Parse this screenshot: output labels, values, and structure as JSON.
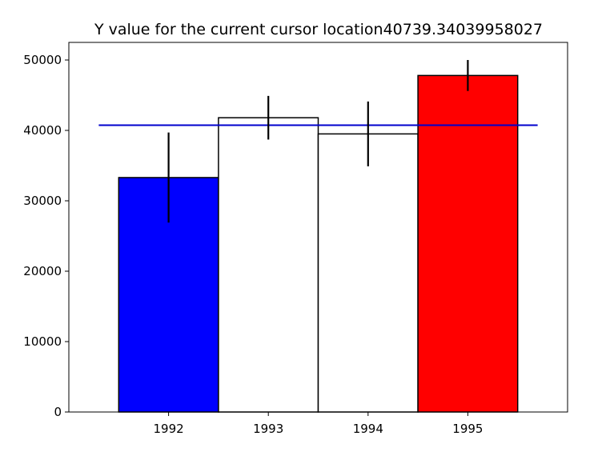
{
  "chart_data": {
    "type": "bar",
    "title": "Y value for the current cursor location40739.34039958027",
    "categories": [
      "1992",
      "1993",
      "1994",
      "1995"
    ],
    "values": [
      33300,
      41800,
      39500,
      47800
    ],
    "error": [
      6400,
      3100,
      4600,
      2200
    ],
    "bar_colors": [
      "#0000ff",
      "#ffffff",
      "#ffffff",
      "#ff0000"
    ],
    "edge_color": "#000000",
    "error_color": "#000000",
    "hline": {
      "value": 40739.34039958027,
      "color": "#0000cc"
    },
    "xlabel": "",
    "ylabel": "",
    "ylim": [
      0,
      52500
    ],
    "yticks": [
      0,
      10000,
      20000,
      30000,
      40000,
      50000
    ],
    "ytick_labels": [
      "0",
      "10000",
      "20000",
      "30000",
      "40000",
      "50000"
    ],
    "grid": false
  }
}
